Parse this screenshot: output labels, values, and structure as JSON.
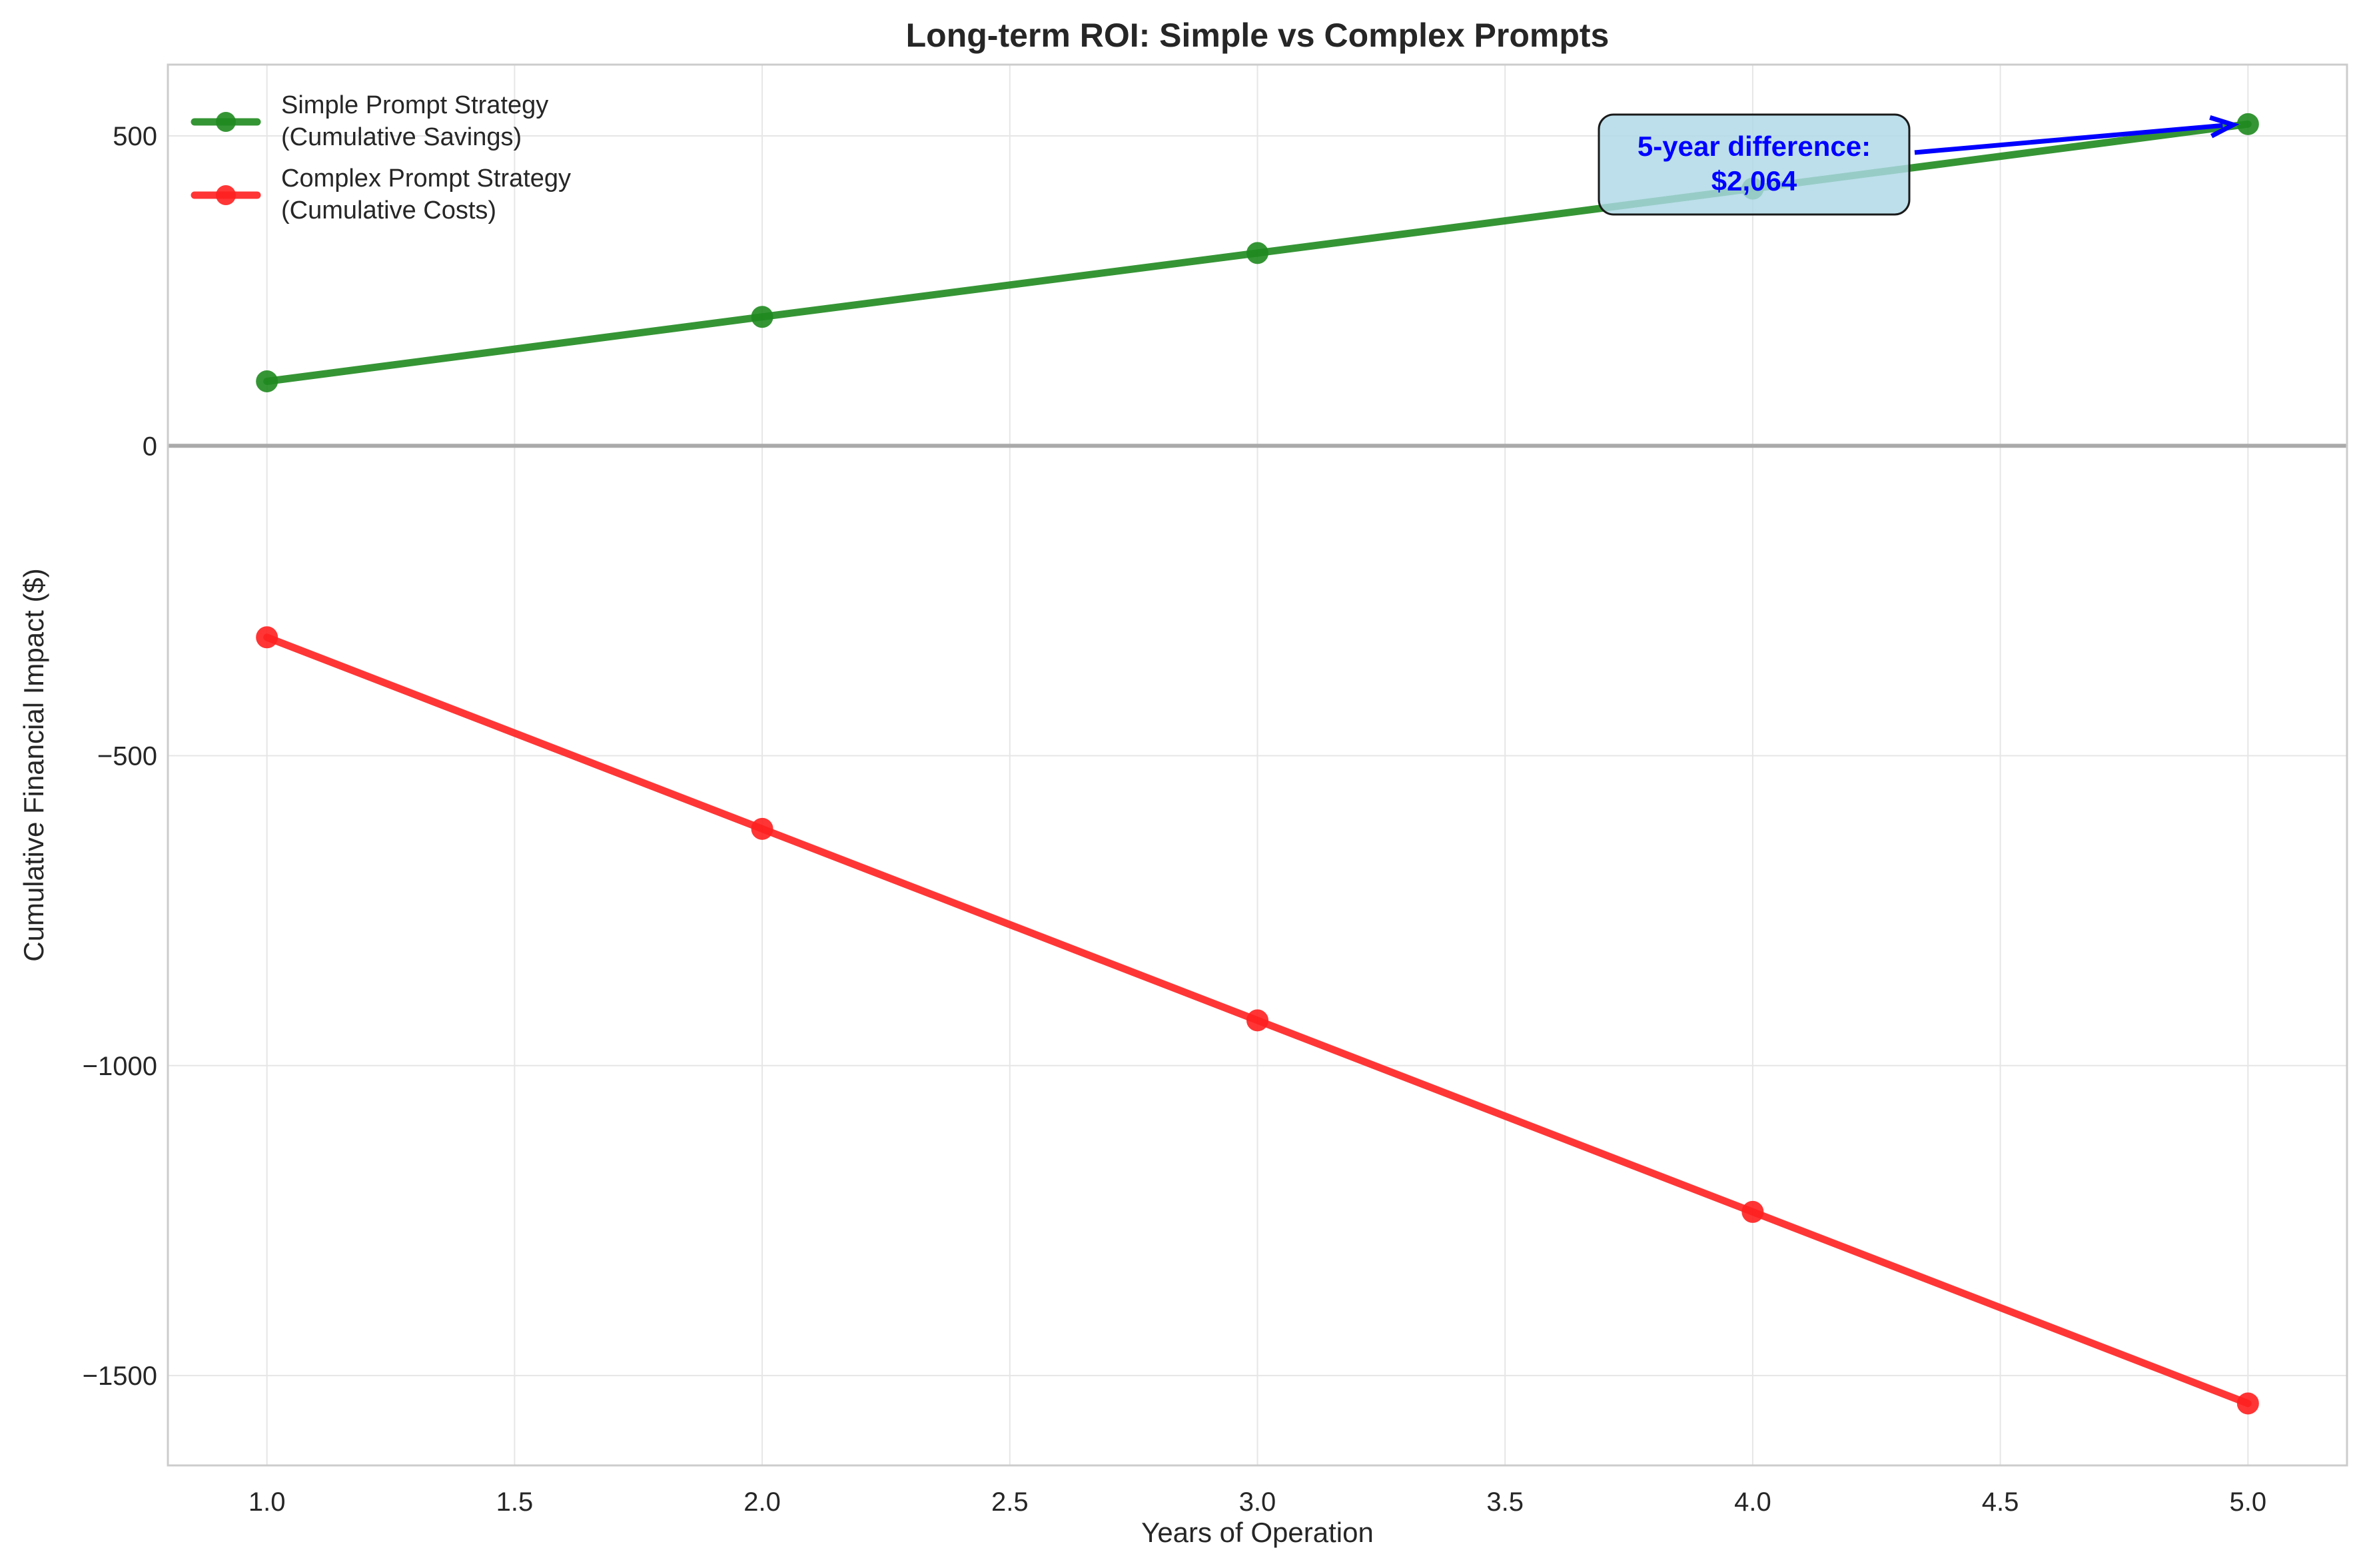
{
  "chart_data": {
    "type": "line",
    "title": "Long-term ROI: Simple vs Complex Prompts",
    "xlabel": "Years of Operation",
    "ylabel": "Cumulative Financial Impact ($)",
    "xlim": [
      0.8,
      5.2
    ],
    "ylim": [
      -1645,
      615
    ],
    "x_ticks": [
      1.0,
      1.5,
      2.0,
      2.5,
      3.0,
      3.5,
      4.0,
      4.5,
      5.0
    ],
    "x_tick_labels": [
      "1.0",
      "1.5",
      "2.0",
      "2.5",
      "3.0",
      "3.5",
      "4.0",
      "4.5",
      "5.0"
    ],
    "y_ticks": [
      -1500,
      -1000,
      -500,
      0,
      500
    ],
    "y_tick_labels": [
      "−1500",
      "−1000",
      "−500",
      "0",
      "500"
    ],
    "grid": true,
    "legend_position": "top-left",
    "zero_line": true,
    "x": [
      1,
      2,
      3,
      4,
      5
    ],
    "series": [
      {
        "name_lines": [
          "Simple Prompt Strategy",
          "(Cumulative Savings)"
        ],
        "values": [
          104,
          208,
          311,
          415,
          519
        ],
        "color": "#1f8a1f"
      },
      {
        "name_lines": [
          "Complex Prompt Strategy",
          "(Cumulative Costs)"
        ],
        "values": [
          -309,
          -618,
          -927,
          -1236,
          -1545
        ],
        "color": "#ff2020"
      }
    ],
    "annotation": {
      "text_lines": [
        "5-year difference:",
        "$2,064"
      ],
      "point_x": 5,
      "point_y": 519,
      "text_color": "#0000ff",
      "arrow_color": "#0000ff",
      "box_color": "#add8e6"
    }
  }
}
